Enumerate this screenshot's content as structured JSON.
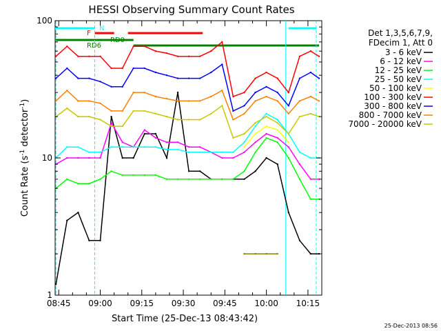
{
  "chart_data": {
    "type": "line",
    "title": "HESSI Observing Summary Count Rates",
    "xlabel": "Start Time (25-Dec-13 08:43:42)",
    "ylabel": "Count Rate (s⁻¹ detector⁻¹)",
    "yscale": "log",
    "ylim": [
      1,
      100
    ],
    "xlim": [
      "08:43:42",
      "10:20:00"
    ],
    "x_ticks": [
      "08:45",
      "09:00",
      "09:15",
      "09:30",
      "09:45",
      "10:00",
      "10:15"
    ],
    "y_ticks": [
      "1",
      "10",
      "100"
    ],
    "grid": false,
    "legend_header": [
      "Det 1,3,5,6,7,9,",
      "FDecim 1, Att 0"
    ],
    "legend_position": "right",
    "timestamp": "25-Dec-2013 08:56",
    "x": [
      "08:44",
      "08:48",
      "08:52",
      "08:56",
      "09:00",
      "09:04",
      "09:08",
      "09:12",
      "09:16",
      "09:20",
      "09:24",
      "09:28",
      "09:32",
      "09:36",
      "09:40",
      "09:44",
      "09:48",
      "09:52",
      "09:56",
      "10:00",
      "10:04",
      "10:08",
      "10:12",
      "10:16",
      "10:19"
    ],
    "series": [
      {
        "name": "3 - 6 keV",
        "color": "#000000",
        "values": [
          1.2,
          3.5,
          4.0,
          2.5,
          2.5,
          20,
          10,
          10,
          15,
          15,
          10,
          30,
          8,
          8,
          7,
          7,
          7,
          7,
          8,
          10,
          9,
          4,
          2.5,
          2.0,
          2.0
        ]
      },
      {
        "name": "6 - 12 keV",
        "color": "#ff00ff",
        "values": [
          9,
          10,
          10,
          10,
          10,
          18,
          13,
          12,
          16,
          14,
          13,
          13,
          12,
          12,
          11,
          10,
          10,
          11,
          13,
          15,
          14,
          12,
          9,
          7,
          7
        ]
      },
      {
        "name": "12 - 25 keV",
        "color": "#00ff00",
        "values": [
          6,
          7,
          6.5,
          6.5,
          7,
          8,
          7.5,
          7.5,
          7.5,
          7.5,
          7,
          7,
          7,
          7,
          7,
          7,
          7,
          8,
          11,
          14,
          13,
          10,
          7,
          5,
          5
        ]
      },
      {
        "name": "25 - 50 keV",
        "color": "#00ffff",
        "values": [
          10,
          12,
          12,
          11,
          11,
          12,
          12,
          12,
          12,
          12,
          11.5,
          11.5,
          11,
          11,
          11,
          11,
          11,
          13,
          17,
          21,
          19,
          15,
          11,
          10,
          10
        ]
      },
      {
        "name": "50 - 100 keV",
        "color": "#ffff00",
        "values": [
          null,
          null,
          null,
          null,
          null,
          null,
          null,
          null,
          null,
          null,
          null,
          null,
          null,
          null,
          null,
          null,
          null,
          12,
          15,
          17,
          16,
          13,
          null,
          null,
          null
        ]
      },
      {
        "name": "100 - 300 keV",
        "color": "#ff0000",
        "values": [
          55,
          65,
          55,
          55,
          55,
          45,
          45,
          65,
          65,
          60,
          58,
          55,
          55,
          55,
          60,
          70,
          28,
          30,
          38,
          42,
          38,
          30,
          55,
          60,
          55
        ]
      },
      {
        "name": "300 - 800 keV",
        "color": "#0000ff",
        "values": [
          38,
          45,
          38,
          38,
          36,
          33,
          33,
          45,
          45,
          42,
          40,
          38,
          38,
          38,
          42,
          48,
          22,
          24,
          30,
          33,
          30,
          24,
          38,
          42,
          38
        ]
      },
      {
        "name": "800 - 7000 keV",
        "color": "#ff8000",
        "values": [
          26,
          31,
          26,
          26,
          25,
          22,
          22,
          30,
          30,
          28,
          27,
          26,
          26,
          26,
          28,
          31,
          19,
          21,
          26,
          28,
          26,
          21,
          26,
          28,
          26
        ]
      },
      {
        "name": "7000 - 20000 keV",
        "color": "#c8c800",
        "values": [
          20,
          23,
          20,
          20,
          19,
          17,
          17,
          22,
          22,
          21,
          20,
          19,
          19,
          19,
          21,
          24,
          14,
          15,
          18,
          20,
          18,
          15,
          20,
          21,
          20
        ]
      },
      {
        "name": "",
        "color": "#808000",
        "values": [
          null,
          null,
          null,
          null,
          null,
          null,
          null,
          null,
          null,
          null,
          null,
          null,
          null,
          null,
          null,
          null,
          null,
          2.0,
          2.0,
          2.0,
          2.0,
          null,
          null,
          null,
          null
        ]
      }
    ],
    "annotations": [
      {
        "text": "N",
        "color": "#00ffff"
      },
      {
        "text": "F",
        "color": "#ff0000"
      },
      {
        "text": "RD6",
        "color": "#008000"
      },
      {
        "text": "RD0",
        "color": "#008000"
      }
    ],
    "flag_bars": [
      {
        "name": "night",
        "color": "#00ffff",
        "ranges": [
          [
            "08:43:42",
            "08:58"
          ],
          [
            "10:08",
            "10:18"
          ]
        ]
      },
      {
        "name": "flare",
        "color": "#ff0000",
        "ranges": [
          [
            "08:58",
            "09:05"
          ],
          [
            "09:10",
            "09:37"
          ]
        ]
      },
      {
        "name": "RD6",
        "color": "#008000",
        "ranges": [
          [
            "08:43:42",
            "09:12"
          ]
        ]
      },
      {
        "name": "RD0",
        "color": "#008000",
        "ranges": [
          [
            "09:12",
            "10:19"
          ]
        ]
      }
    ],
    "vertical_markers": [
      {
        "color": "#00ffff",
        "style": "dashed",
        "time": "08:44"
      },
      {
        "color": "#00ffff",
        "style": "dashed",
        "time": "08:58"
      },
      {
        "color": "#00ffff",
        "style": "solid",
        "time": "10:07"
      },
      {
        "color": "#00ffff",
        "style": "dashed",
        "time": "10:18"
      }
    ]
  }
}
